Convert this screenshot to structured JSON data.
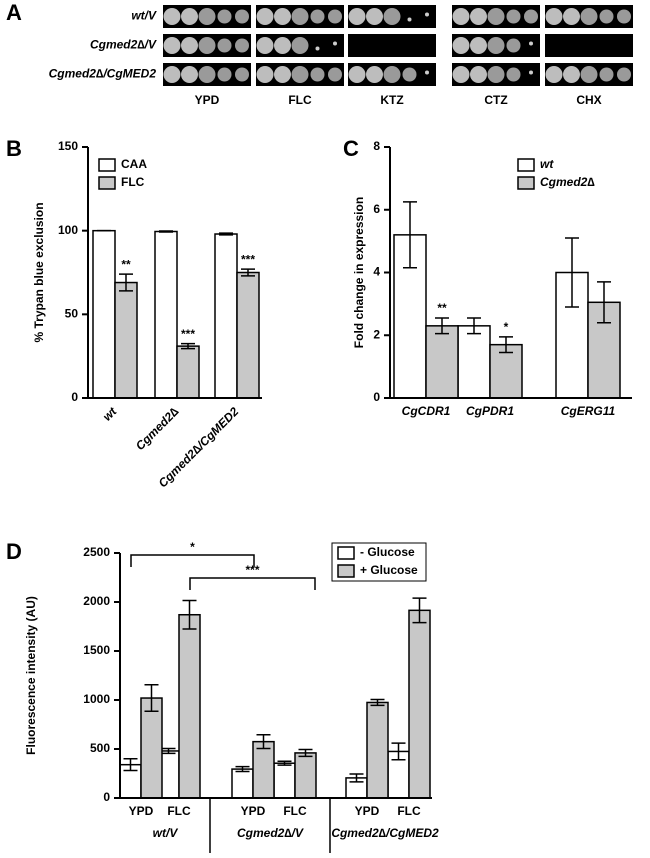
{
  "panel_a": {
    "label": "A",
    "rows": [
      "wt/V",
      "Cgmed2∆/V",
      "Cgmed2∆/CgMED2"
    ],
    "columns": [
      "YPD",
      "FLC",
      "KTZ",
      "CTZ",
      "CHX"
    ]
  },
  "chart_data": [
    {
      "type": "bar",
      "panel": "B",
      "ylabel": "% Trypan blue exclusion",
      "categories": [
        "wt",
        "Cgmed2∆",
        "Cgmed2∆/CgMED2"
      ],
      "series": [
        {
          "name": "CAA",
          "color": "#ffffff",
          "values": [
            100,
            99.5,
            98
          ],
          "errors": [
            0,
            0.3,
            0.5
          ]
        },
        {
          "name": "FLC",
          "color": "#c8c8c8",
          "values": [
            69,
            31,
            75
          ],
          "errors": [
            5,
            1.5,
            2
          ],
          "labels": [
            "**",
            "***",
            "***"
          ]
        }
      ],
      "ylim": [
        0,
        150
      ],
      "yticks": [
        0,
        50,
        100,
        150
      ]
    },
    {
      "type": "bar",
      "panel": "C",
      "ylabel": "Fold change in expression",
      "categories": [
        "CgCDR1",
        "CgPDR1",
        "CgERG11"
      ],
      "series": [
        {
          "name": "wt",
          "color": "#ffffff",
          "values": [
            5.2,
            2.3,
            4.0
          ],
          "errors": [
            1.05,
            0.25,
            1.1
          ]
        },
        {
          "name": "Cgmed2∆",
          "color": "#c8c8c8",
          "values": [
            2.3,
            1.7,
            3.05
          ],
          "errors": [
            0.25,
            0.25,
            0.65
          ],
          "labels": [
            "**",
            "*",
            null
          ]
        }
      ],
      "ylim": [
        0,
        8
      ],
      "yticks": [
        0,
        2,
        4,
        6,
        8
      ]
    },
    {
      "type": "bar",
      "panel": "D",
      "ylabel": "Fluorescence intensity (AU)",
      "categories": [
        "YPD",
        "FLC",
        "YPD",
        "FLC",
        "YPD",
        "FLC"
      ],
      "groups": [
        "wt/V",
        "Cgmed2∆/V",
        "Cgmed2∆/CgMED2"
      ],
      "series": [
        {
          "name": "- Glucose",
          "color": "#ffffff",
          "values": [
            340,
            480,
            295,
            355,
            205,
            475
          ],
          "errors": [
            60,
            25,
            25,
            20,
            40,
            85
          ]
        },
        {
          "name": "+ Glucose",
          "color": "#c8c8c8",
          "values": [
            1020,
            1870,
            575,
            460,
            975,
            1915
          ],
          "errors": [
            135,
            145,
            70,
            35,
            30,
            125
          ]
        }
      ],
      "brackets": [
        "*",
        "***"
      ],
      "ylim": [
        0,
        2500
      ],
      "yticks": [
        0,
        500,
        1000,
        1500,
        2000,
        2500
      ]
    }
  ]
}
